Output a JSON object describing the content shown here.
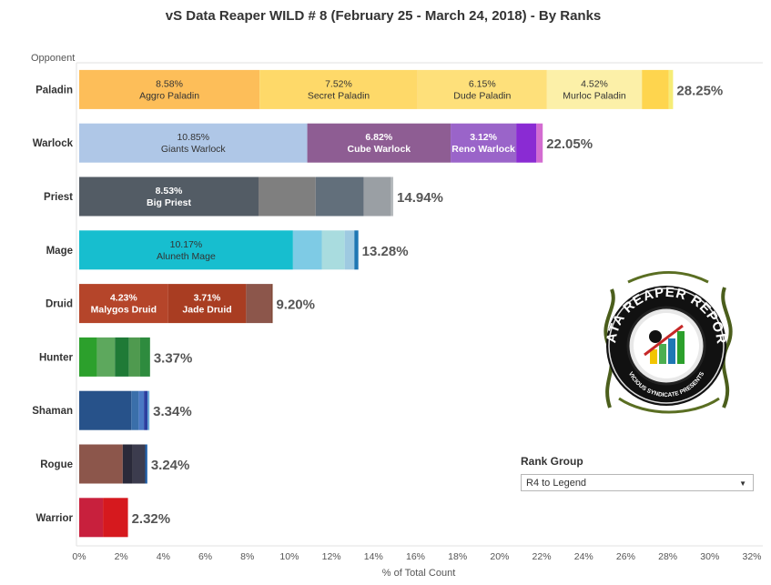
{
  "chart_data": {
    "type": "bar",
    "orientation": "horizontal",
    "stacked": true,
    "title": "vS Data Reaper WILD # 8 (February 25 - March 24, 2018) - By Ranks",
    "row_header": "Opponent",
    "xlabel": "% of Total Count",
    "xlim": [
      0,
      32
    ],
    "xticks": [
      "0%",
      "2%",
      "4%",
      "6%",
      "8%",
      "10%",
      "12%",
      "14%",
      "16%",
      "18%",
      "20%",
      "22%",
      "24%",
      "26%",
      "28%",
      "30%",
      "32%"
    ],
    "grid": false,
    "categories": [
      "Paladin",
      "Warlock",
      "Priest",
      "Mage",
      "Druid",
      "Hunter",
      "Shaman",
      "Rogue",
      "Warrior"
    ],
    "rows": [
      {
        "category": "Paladin",
        "total": "28.25%",
        "segments": [
          {
            "value": 8.58,
            "label": "8.58%",
            "name": "Aggro Paladin",
            "color": "#fdbe59"
          },
          {
            "value": 7.52,
            "label": "7.52%",
            "name": "Secret Paladin",
            "color": "#fed969"
          },
          {
            "value": 6.15,
            "label": "6.15%",
            "name": "Dude Paladin",
            "color": "#fee07a"
          },
          {
            "value": 4.52,
            "label": "4.52%",
            "name": "Murloc Paladin",
            "color": "#fcf0a8"
          },
          {
            "value": 1.28,
            "color": "#fed54e"
          },
          {
            "value": 0.2,
            "color": "#f6ec76"
          }
        ]
      },
      {
        "category": "Warlock",
        "total": "22.05%",
        "segments": [
          {
            "value": 10.85,
            "label": "10.85%",
            "name": "Giants Warlock",
            "color": "#afc7e7"
          },
          {
            "value": 6.82,
            "label": "6.82%",
            "name": "Cube Warlock",
            "color": "#8e5d93"
          },
          {
            "value": 3.12,
            "label": "3.12%",
            "name": "Reno Warlock",
            "color": "#9a64c9"
          },
          {
            "value": 0.96,
            "color": "#8a2bd3"
          },
          {
            "value": 0.3,
            "color": "#d36cd1"
          }
        ]
      },
      {
        "category": "Priest",
        "total": "14.94%",
        "segments": [
          {
            "value": 8.53,
            "label": "8.53%",
            "name": "Big Priest",
            "color": "#535c65"
          },
          {
            "value": 2.72,
            "color": "#7f7f7f"
          },
          {
            "value": 2.28,
            "color": "#626f7b"
          },
          {
            "value": 1.31,
            "color": "#9a9fa4"
          },
          {
            "value": 0.1,
            "color": "#b6babd"
          }
        ]
      },
      {
        "category": "Mage",
        "total": "13.28%",
        "segments": [
          {
            "value": 10.17,
            "label": "10.17%",
            "name": "Aluneth Mage",
            "color": "#17becf"
          },
          {
            "value": 1.37,
            "color": "#7ecbe5"
          },
          {
            "value": 1.09,
            "color": "#a9dcdf"
          },
          {
            "value": 0.46,
            "color": "#9ecae1"
          },
          {
            "value": 0.19,
            "color": "#1f77b4"
          }
        ]
      },
      {
        "category": "Druid",
        "total": "9.20%",
        "segments": [
          {
            "value": 4.23,
            "label": "4.23%",
            "name": "Malygos Druid",
            "color": "#b5452a"
          },
          {
            "value": 3.71,
            "label": "3.71%",
            "name": "Jade Druid",
            "color": "#a93d22"
          },
          {
            "value": 1.21,
            "color": "#8c564b"
          },
          {
            "value": 0.05,
            "color": "#6b2a14"
          }
        ]
      },
      {
        "category": "Hunter",
        "total": "3.37%",
        "segments": [
          {
            "value": 0.85,
            "color": "#2ca02c"
          },
          {
            "value": 0.85,
            "color": "#5da85d"
          },
          {
            "value": 0.67,
            "color": "#1f7a36"
          },
          {
            "value": 0.53,
            "color": "#4f9a4f"
          },
          {
            "value": 0.47,
            "color": "#2e8b3e"
          }
        ]
      },
      {
        "category": "Shaman",
        "total": "3.34%",
        "segments": [
          {
            "value": 2.48,
            "color": "#27528a"
          },
          {
            "value": 0.35,
            "color": "#3a6faa"
          },
          {
            "value": 0.25,
            "color": "#4a78c4"
          },
          {
            "value": 0.17,
            "color": "#2b3fa0"
          },
          {
            "value": 0.09,
            "color": "#6aa7d6"
          }
        ]
      },
      {
        "category": "Rogue",
        "total": "3.24%",
        "segments": [
          {
            "value": 2.07,
            "color": "#8c564b"
          },
          {
            "value": 0.48,
            "color": "#2a2a3a"
          },
          {
            "value": 0.59,
            "color": "#3c3c4e"
          },
          {
            "value": 0.1,
            "color": "#1f5fa8"
          }
        ]
      },
      {
        "category": "Warrior",
        "total": "2.32%",
        "segments": [
          {
            "value": 1.13,
            "color": "#c8203d"
          },
          {
            "value": 1.19,
            "color": "#d6191e"
          }
        ]
      }
    ]
  },
  "rank_group": {
    "title": "Rank Group",
    "selected": "R4 to Legend"
  },
  "logo": {
    "text": "DATA REAPER REPORT",
    "subtext": "VICIOUS SYNDICATE PRESENTS"
  }
}
